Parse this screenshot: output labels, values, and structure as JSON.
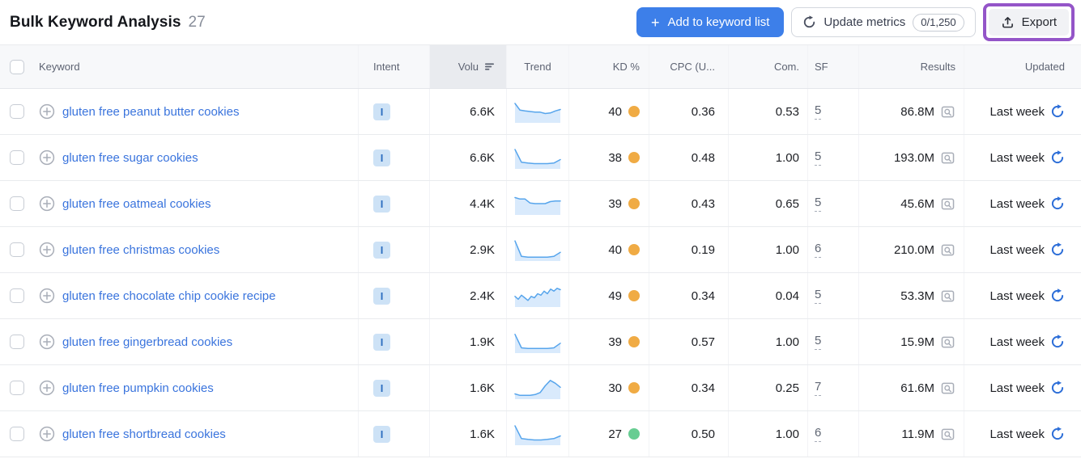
{
  "toolbar": {
    "title": "Bulk Keyword Analysis",
    "count": "27",
    "add_button": {
      "plus": "+",
      "label": "Add to keyword list"
    },
    "update_button": {
      "label": "Update metrics",
      "quota": "0/1,250"
    },
    "export_button": {
      "label": "Export"
    }
  },
  "colors": {
    "primary_blue": "#3d7fe9",
    "link_blue": "#3a74dd",
    "refresh_blue": "#2e6fd8",
    "kd_medium": "#f0ab44",
    "kd_easy": "#67cd92",
    "export_highlight_purple": "#9455c8",
    "sparkline_line": "#57a5ec",
    "sparkline_fill": "#d9eafc",
    "header_bg": "#f7f8fa",
    "sorted_col_bg": "#e9ebef"
  },
  "table": {
    "columns": [
      {
        "id": "keyword",
        "label": "Keyword"
      },
      {
        "id": "intent",
        "label": "Intent"
      },
      {
        "id": "volume",
        "label": "Volu",
        "sorted": "desc"
      },
      {
        "id": "trend",
        "label": "Trend"
      },
      {
        "id": "kd",
        "label": "KD %"
      },
      {
        "id": "cpc",
        "label": "CPC (U..."
      },
      {
        "id": "com",
        "label": "Com."
      },
      {
        "id": "sf",
        "label": "SF"
      },
      {
        "id": "results",
        "label": "Results"
      },
      {
        "id": "updated",
        "label": "Updated"
      }
    ],
    "rows": [
      {
        "keyword": "gluten free peanut butter cookies",
        "intent": "I",
        "volume": "6.6K",
        "trend": [
          0.9,
          0.57,
          0.53,
          0.5,
          0.47,
          0.47,
          0.4,
          0.43,
          0.53,
          0.6
        ],
        "kd": "40",
        "kd_color": "#f0ab44",
        "cpc": "0.36",
        "com": "0.53",
        "sf": "5",
        "results": "86.8M",
        "updated": "Last week"
      },
      {
        "keyword": "gluten free sugar cookies",
        "intent": "I",
        "volume": "6.6K",
        "trend": [
          0.9,
          0.27,
          0.23,
          0.2,
          0.2,
          0.2,
          0.23,
          0.4
        ],
        "kd": "38",
        "kd_color": "#f0ab44",
        "cpc": "0.48",
        "com": "1.00",
        "sf": "5",
        "results": "193.0M",
        "updated": "Last week"
      },
      {
        "keyword": "gluten free oatmeal cookies",
        "intent": "I",
        "volume": "4.4K",
        "trend": [
          0.8,
          0.73,
          0.73,
          0.53,
          0.5,
          0.5,
          0.5,
          0.6,
          0.63,
          0.63
        ],
        "kd": "39",
        "kd_color": "#f0ab44",
        "cpc": "0.43",
        "com": "0.65",
        "sf": "5",
        "results": "45.6M",
        "updated": "Last week"
      },
      {
        "keyword": "gluten free christmas cookies",
        "intent": "I",
        "volume": "2.9K",
        "trend": [
          0.93,
          0.17,
          0.13,
          0.13,
          0.13,
          0.13,
          0.17,
          0.37
        ],
        "kd": "40",
        "kd_color": "#f0ab44",
        "cpc": "0.19",
        "com": "1.00",
        "sf": "6",
        "results": "210.0M",
        "updated": "Last week"
      },
      {
        "keyword": "gluten free chocolate chip cookie recipe",
        "intent": "I",
        "volume": "2.4K",
        "trend": [
          0.47,
          0.33,
          0.53,
          0.4,
          0.27,
          0.47,
          0.4,
          0.6,
          0.53,
          0.73,
          0.6,
          0.83,
          0.73,
          0.87,
          0.8
        ],
        "kd": "49",
        "kd_color": "#f0ab44",
        "cpc": "0.34",
        "com": "0.04",
        "sf": "5",
        "results": "53.3M",
        "updated": "Last week"
      },
      {
        "keyword": "gluten free gingerbread cookies",
        "intent": "I",
        "volume": "1.9K",
        "trend": [
          0.87,
          0.2,
          0.17,
          0.17,
          0.17,
          0.17,
          0.2,
          0.43
        ],
        "kd": "39",
        "kd_color": "#f0ab44",
        "cpc": "0.57",
        "com": "1.00",
        "sf": "5",
        "results": "15.9M",
        "updated": "Last week"
      },
      {
        "keyword": "gluten free pumpkin cookies",
        "intent": "I",
        "volume": "1.6K",
        "trend": [
          0.2,
          0.13,
          0.13,
          0.13,
          0.17,
          0.27,
          0.6,
          0.87,
          0.73,
          0.53
        ],
        "kd": "30",
        "kd_color": "#f0ab44",
        "cpc": "0.34",
        "com": "0.25",
        "sf": "7",
        "results": "61.6M",
        "updated": "Last week"
      },
      {
        "keyword": "gluten free shortbread cookies",
        "intent": "I",
        "volume": "1.6K",
        "trend": [
          0.9,
          0.27,
          0.23,
          0.2,
          0.2,
          0.23,
          0.27,
          0.4
        ],
        "kd": "27",
        "kd_color": "#67cd92",
        "cpc": "0.50",
        "com": "1.00",
        "sf": "6",
        "results": "11.9M",
        "updated": "Last week"
      }
    ]
  }
}
